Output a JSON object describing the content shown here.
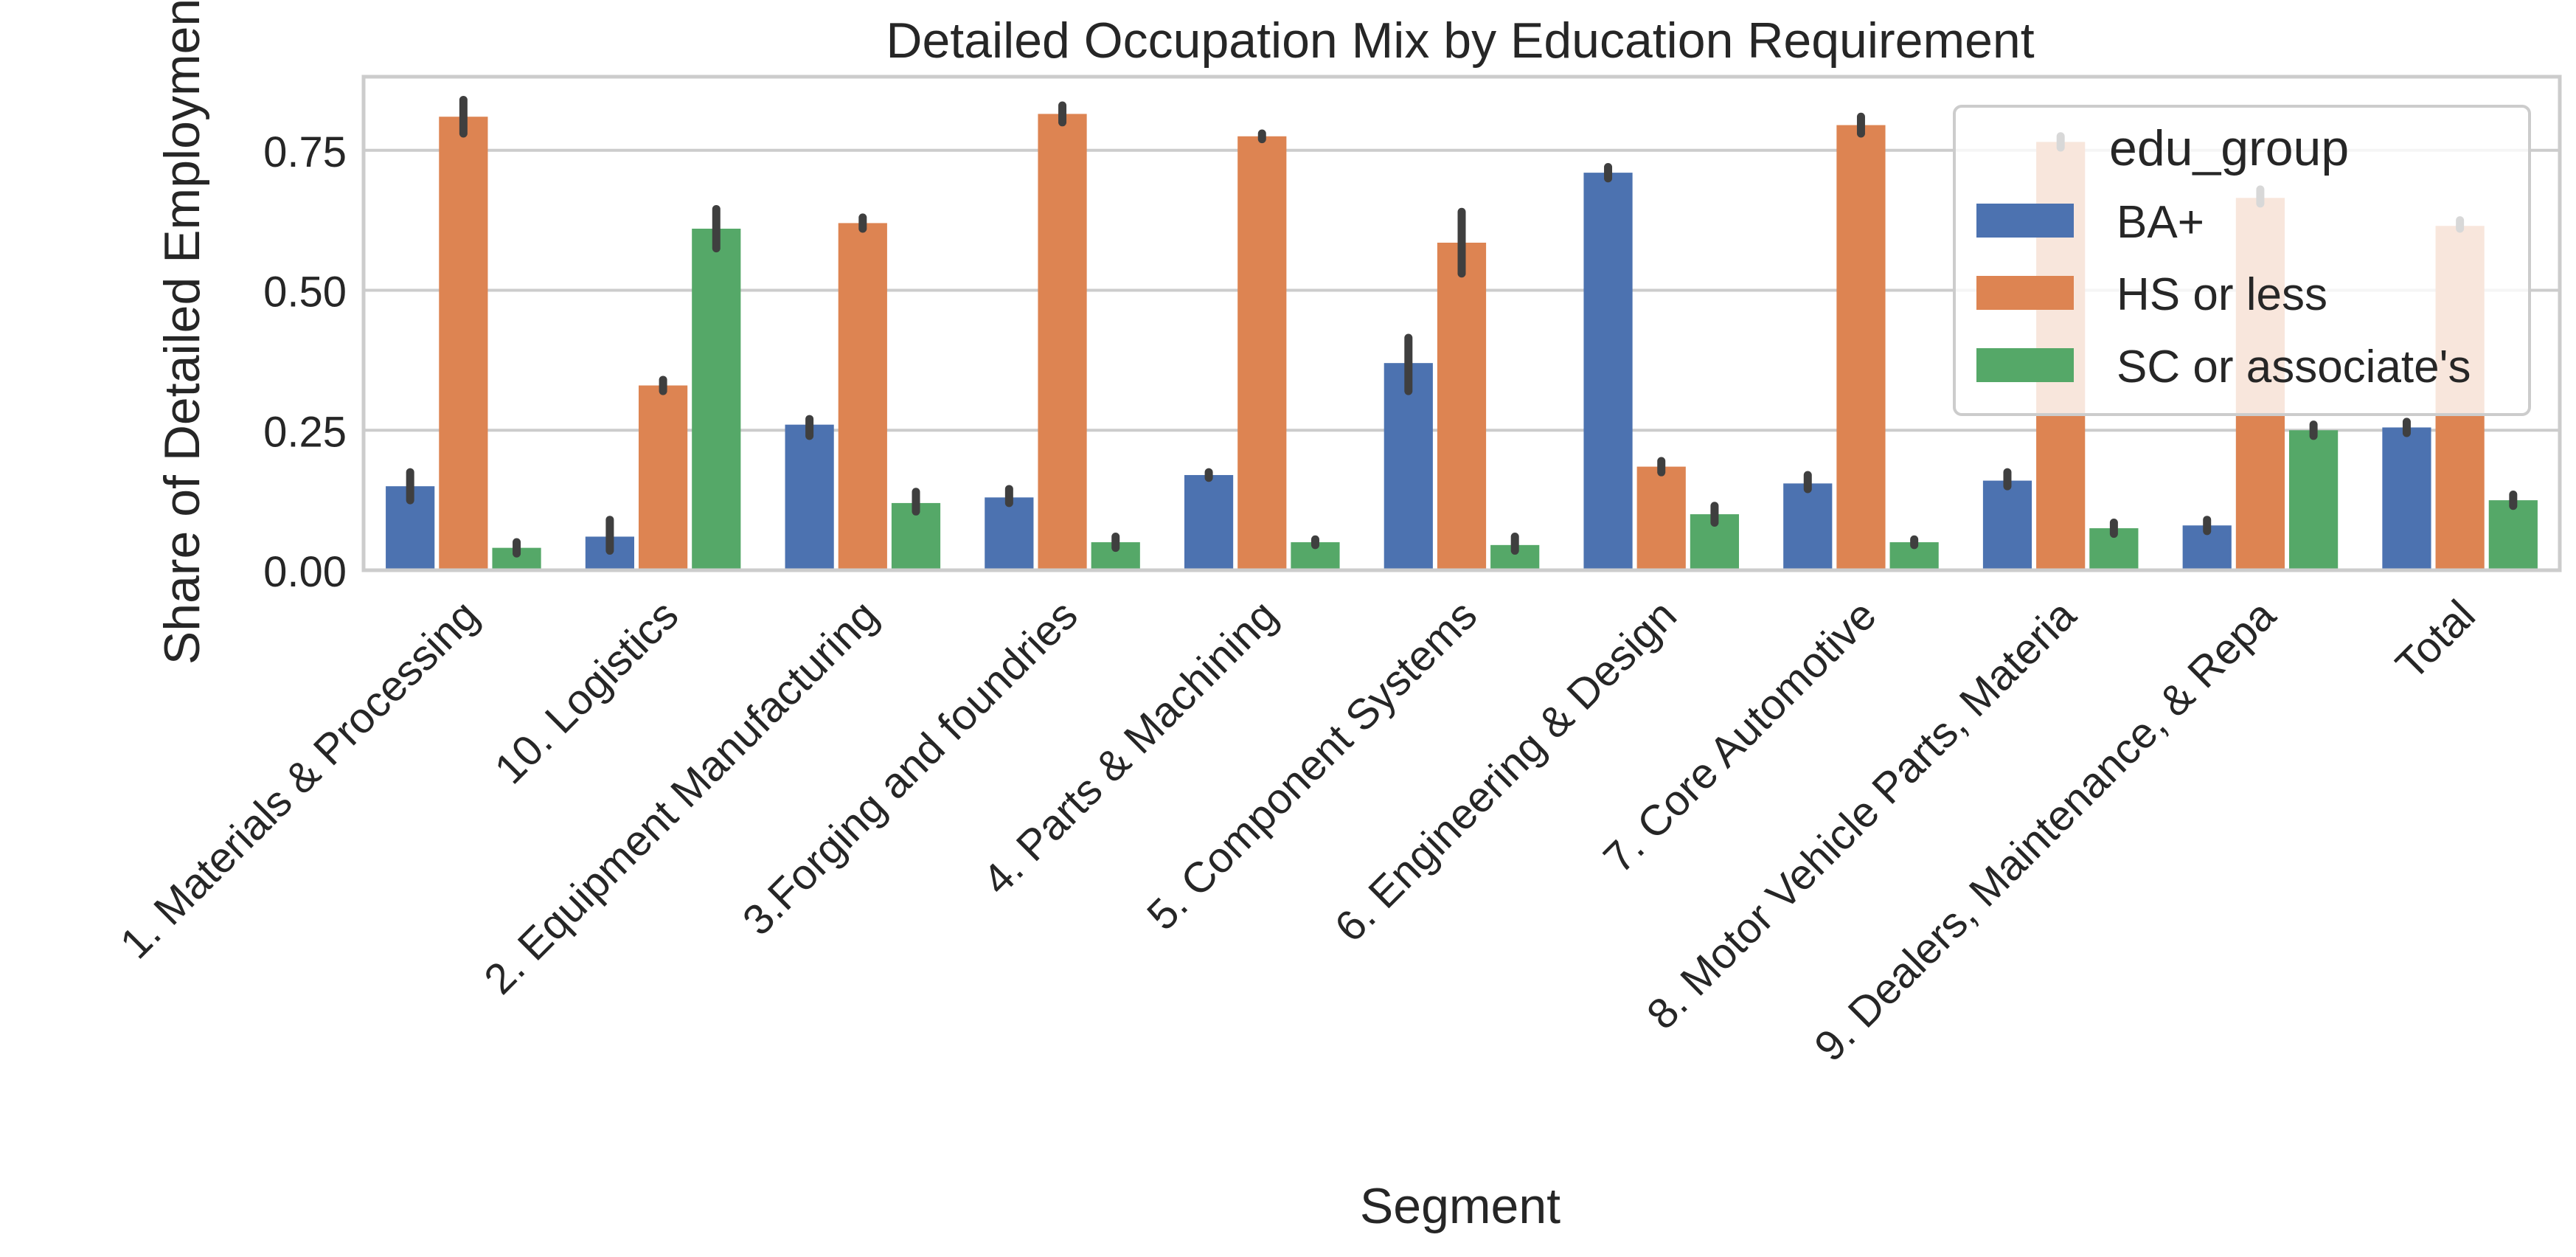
{
  "chart_data": {
    "type": "bar",
    "title": "Detailed Occupation Mix by Education Requirement",
    "xlabel": "Segment",
    "ylabel": "Share of Detailed Employment",
    "ylim": [
      0,
      0.88
    ],
    "yticks": [
      "0.00",
      "0.25",
      "0.50",
      "0.75"
    ],
    "grid": true,
    "legend": {
      "title": "edu_group",
      "placement": "top-right"
    },
    "categories": [
      "1. Materials & Processing",
      "10. Logistics",
      "2. Equipment Manufacturing",
      "3.Forging and foundries",
      "4. Parts & Machining",
      "5. Component Systems",
      "6. Engineering & Design",
      "7. Core Automotive",
      "8. Motor Vehicle Parts, Materia",
      "9. Dealers, Maintenance, & Repa",
      "Total"
    ],
    "series": [
      {
        "name": "BA+",
        "color": "#4c72b0",
        "values": [
          0.15,
          0.06,
          0.26,
          0.13,
          0.17,
          0.37,
          0.71,
          0.155,
          0.16,
          0.08,
          0.255
        ],
        "ci": [
          [
            0.125,
            0.175
          ],
          [
            0.035,
            0.09
          ],
          [
            0.24,
            0.27
          ],
          [
            0.12,
            0.145
          ],
          [
            0.165,
            0.175
          ],
          [
            0.32,
            0.415
          ],
          [
            0.7,
            0.72
          ],
          [
            0.145,
            0.17
          ],
          [
            0.15,
            0.175
          ],
          [
            0.07,
            0.09
          ],
          [
            0.245,
            0.265
          ]
        ]
      },
      {
        "name": "HS or less",
        "color": "#dd8452",
        "values": [
          0.81,
          0.33,
          0.62,
          0.815,
          0.775,
          0.585,
          0.185,
          0.795,
          0.765,
          0.665,
          0.615
        ],
        "ci": [
          [
            0.78,
            0.84
          ],
          [
            0.32,
            0.34
          ],
          [
            0.61,
            0.63
          ],
          [
            0.8,
            0.83
          ],
          [
            0.77,
            0.78
          ],
          [
            0.53,
            0.64
          ],
          [
            0.175,
            0.195
          ],
          [
            0.78,
            0.81
          ],
          [
            0.755,
            0.775
          ],
          [
            0.655,
            0.68
          ],
          [
            0.61,
            0.625
          ]
        ]
      },
      {
        "name": "SC or associate's",
        "color": "#55a868",
        "values": [
          0.04,
          0.61,
          0.12,
          0.05,
          0.05,
          0.045,
          0.1,
          0.05,
          0.075,
          0.25,
          0.125
        ],
        "ci": [
          [
            0.03,
            0.05
          ],
          [
            0.575,
            0.645
          ],
          [
            0.105,
            0.14
          ],
          [
            0.04,
            0.06
          ],
          [
            0.045,
            0.055
          ],
          [
            0.035,
            0.06
          ],
          [
            0.085,
            0.115
          ],
          [
            0.045,
            0.055
          ],
          [
            0.065,
            0.085
          ],
          [
            0.24,
            0.26
          ],
          [
            0.115,
            0.135
          ]
        ]
      }
    ]
  }
}
